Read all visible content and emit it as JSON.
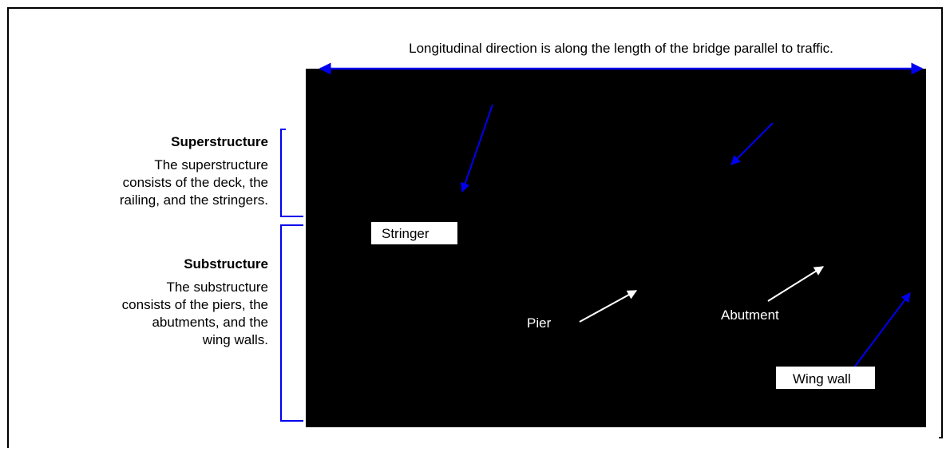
{
  "caption": "Longitudinal direction is along the length of the bridge parallel to traffic.",
  "superstructure": {
    "title": "Superstructure",
    "text": [
      "The superstructure",
      "consists of the deck, the",
      "railing, and the stringers."
    ]
  },
  "substructure": {
    "title": "Substructure",
    "text": [
      "The substructure",
      "consists of the piers, the",
      "abutments, and the",
      "wing walls."
    ]
  },
  "labels": {
    "stringer": "Stringer",
    "pier": "Pier",
    "abutment": "Abutment",
    "wing_wall": "Wing wall"
  }
}
